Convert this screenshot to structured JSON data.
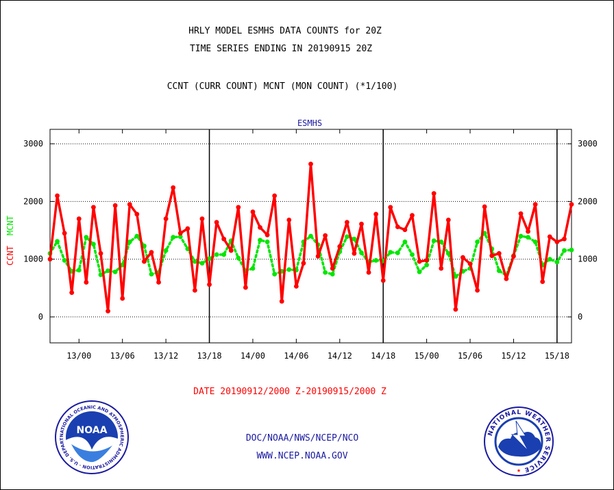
{
  "header": {
    "title_line1": "HRLY MODEL ESMHS DATA COUNTS for 20Z",
    "title_line2": "TIME SERIES ENDING IN 20190915 20Z",
    "subtitle": "CCNT (CURR COUNT) MCNT (MON COUNT) (*1/100)"
  },
  "footer": {
    "date_range": "DATE 20190912/2000 Z-20190915/2000 Z",
    "org": "DOC/NOAA/NWS/NCEP/NCO",
    "url": "WWW.NCEP.NOAA.GOV"
  },
  "logos": {
    "noaa": {
      "label": "NOAA",
      "ring_text": "NATIONAL OCEANIC AND ATMOSPHERIC ADMINISTRATION · U.S. DEPARTMENT OF COMMERCE ·"
    },
    "nws": {
      "ring_text": "NATIONAL WEATHER SERVICE"
    }
  },
  "chart_data": {
    "type": "line",
    "title": "ESMHS",
    "ylabel_left": {
      "ccnt": "CCNT",
      "mcnt": "MCNT"
    },
    "ylim": [
      -450,
      3250
    ],
    "yticks": [
      0,
      1000,
      2000,
      3000
    ],
    "ytick_labels": [
      "0",
      "1000",
      "2000",
      "3000"
    ],
    "grid": true,
    "x_unit": "hours since 12/20Z",
    "xlim": [
      0,
      72
    ],
    "xticks": [
      4,
      10,
      16,
      22,
      28,
      34,
      40,
      46,
      52,
      58,
      64,
      70
    ],
    "xtick_labels": [
      "13/00",
      "13/06",
      "13/12",
      "13/18",
      "14/00",
      "14/06",
      "14/12",
      "14/18",
      "15/00",
      "15/06",
      "15/12",
      "15/18"
    ],
    "day_dividers": [
      22,
      46,
      70
    ],
    "colors": {
      "ccnt": "#ff0000",
      "mcnt": "#00e600"
    },
    "series": [
      {
        "name": "CCNT",
        "color": "#ff0000",
        "style": "solid",
        "values": [
          1000,
          2100,
          1450,
          420,
          1700,
          600,
          1900,
          1100,
          100,
          1930,
          320,
          1950,
          1780,
          960,
          1120,
          600,
          1700,
          2240,
          1450,
          1530,
          460,
          1700,
          560,
          1640,
          1350,
          1150,
          1900,
          510,
          1820,
          1550,
          1420,
          2100,
          270,
          1680,
          530,
          930,
          2650,
          1050,
          1410,
          840,
          1220,
          1640,
          1100,
          1610,
          770,
          1780,
          630,
          1900,
          1560,
          1510,
          1760,
          960,
          980,
          2140,
          840,
          1680,
          130,
          1030,
          920,
          460,
          1910,
          1060,
          1100,
          660,
          1050,
          1790,
          1480,
          1950,
          610,
          1390,
          1300,
          1350,
          1950
        ]
      },
      {
        "name": "MCNT",
        "color": "#00e600",
        "style": "dotted",
        "values": [
          1100,
          1310,
          980,
          790,
          810,
          1380,
          1260,
          730,
          800,
          780,
          900,
          1300,
          1400,
          1230,
          740,
          770,
          1150,
          1380,
          1390,
          1180,
          960,
          930,
          1010,
          1080,
          1080,
          1320,
          1020,
          800,
          840,
          1330,
          1300,
          740,
          790,
          820,
          810,
          1300,
          1400,
          1250,
          770,
          740,
          1130,
          1390,
          1350,
          1110,
          950,
          980,
          970,
          1120,
          1110,
          1300,
          1080,
          780,
          900,
          1320,
          1300,
          1100,
          700,
          790,
          840,
          1300,
          1450,
          1180,
          800,
          720,
          1060,
          1400,
          1380,
          1300,
          900,
          1000,
          950,
          1150,
          1160
        ]
      }
    ]
  }
}
